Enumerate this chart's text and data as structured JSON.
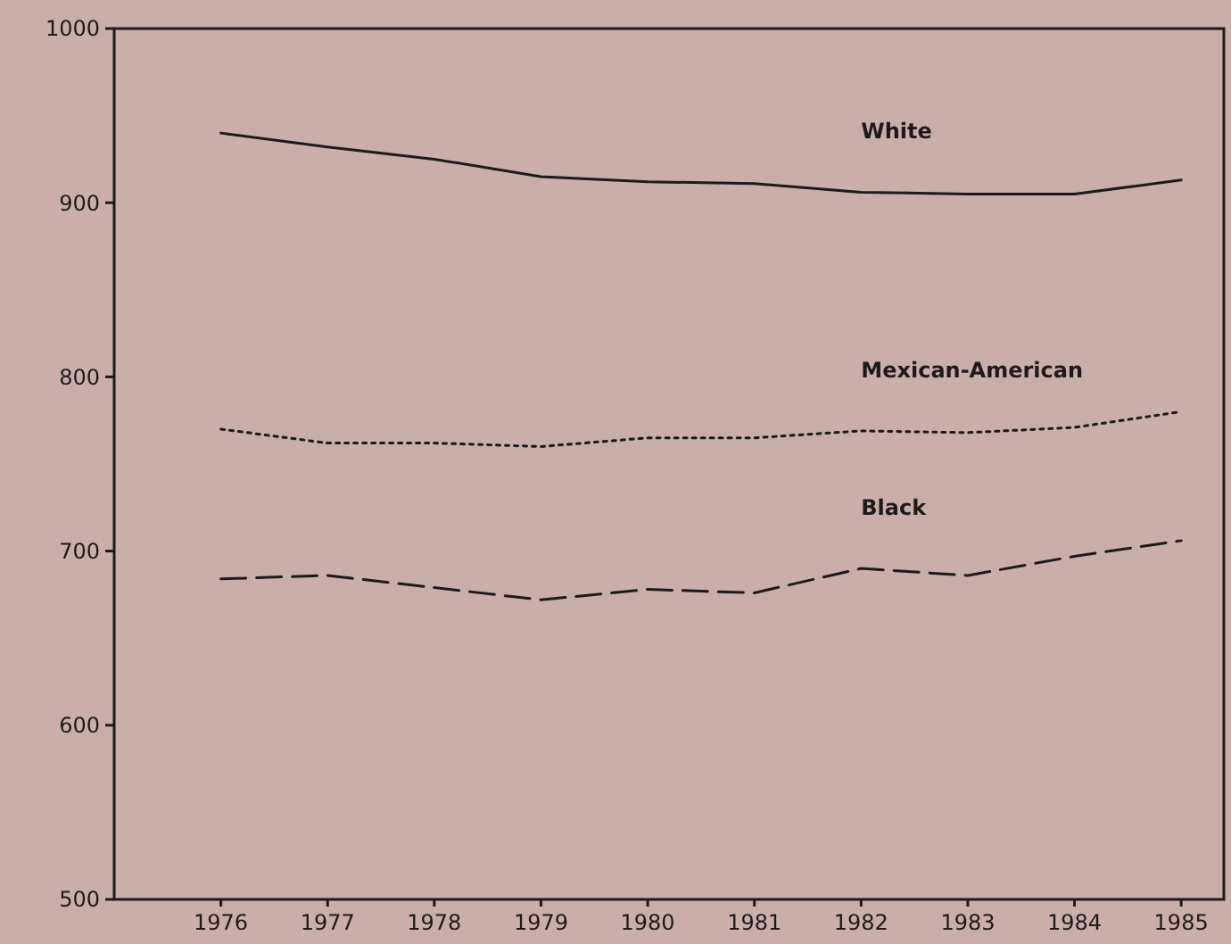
{
  "chart_data": {
    "type": "line",
    "x": [
      1976,
      1977,
      1978,
      1979,
      1980,
      1981,
      1982,
      1983,
      1984,
      1985
    ],
    "xlim": [
      1975,
      1985.4
    ],
    "xticks": [
      1976,
      1977,
      1978,
      1979,
      1980,
      1981,
      1982,
      1983,
      1984,
      1985
    ],
    "ylim": [
      500,
      1000
    ],
    "yticks": [
      500,
      600,
      700,
      800,
      900,
      1000
    ],
    "grid": false,
    "marker": "none",
    "series": [
      {
        "name": "White",
        "color": "#1e1a1a",
        "line_style": "solid",
        "values": [
          940,
          932,
          925,
          915,
          912,
          911,
          906,
          905,
          905,
          913
        ]
      },
      {
        "name": "Mexican-American",
        "color": "#1e1a1a",
        "line_style": "dotted",
        "values": [
          770,
          762,
          762,
          760,
          765,
          765,
          769,
          768,
          771,
          780
        ]
      },
      {
        "name": "Black",
        "color": "#1e1a1a",
        "line_style": "dashed",
        "values": [
          684,
          686,
          679,
          672,
          678,
          676,
          690,
          686,
          697,
          706
        ]
      }
    ]
  }
}
